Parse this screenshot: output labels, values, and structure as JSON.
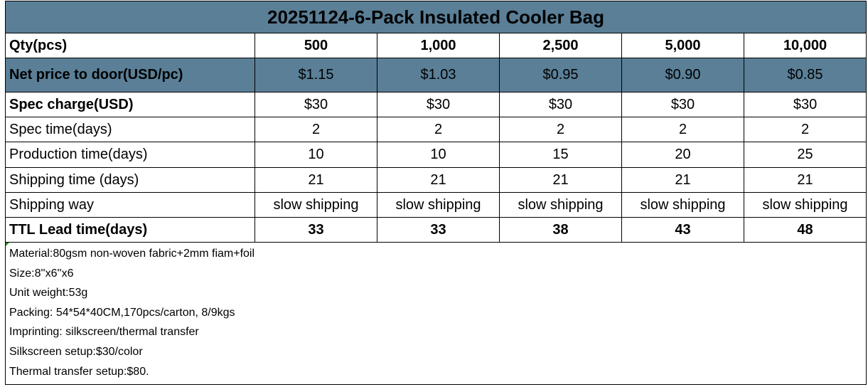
{
  "title": "20251124-6-Pack Insulated Cooler Bag",
  "colors": {
    "header_bg": "#5a7f97"
  },
  "rows": [
    {
      "label": "Qty(pcs)",
      "values": [
        "500",
        "1,000",
        "2,500",
        "5,000",
        "10,000"
      ]
    },
    {
      "label": "Net price to door(USD/pc)",
      "values": [
        "$1.15",
        "$1.03",
        "$0.95",
        "$0.90",
        "$0.85"
      ]
    },
    {
      "label": "Spec charge(USD)",
      "values": [
        "$30",
        "$30",
        "$30",
        "$30",
        "$30"
      ]
    },
    {
      "label": "Spec time(days)",
      "values": [
        "2",
        "2",
        "2",
        "2",
        "2"
      ]
    },
    {
      "label": "Production time(days)",
      "values": [
        "10",
        "10",
        "15",
        "20",
        "25"
      ]
    },
    {
      "label": "Shipping time (days)",
      "values": [
        "21",
        "21",
        "21",
        "21",
        "21"
      ]
    },
    {
      "label": "Shipping way",
      "values": [
        "slow shipping",
        "slow shipping",
        "slow shipping",
        "slow shipping",
        "slow shipping"
      ]
    },
    {
      "label": "TTL Lead time(days)",
      "values": [
        "33",
        "33",
        "38",
        "43",
        "48"
      ]
    }
  ],
  "notes": [
    "Material:80gsm non-woven fabric+2mm fiam+foil",
    "Size:8''x6''x6",
    "Unit weight:53g",
    "Packing:  54*54*40CM,170pcs/carton, 8/9kgs",
    "Imprinting: silkscreen/thermal transfer",
    "Silkscreen setup:$30/color",
    "Thermal transfer setup:$80."
  ]
}
